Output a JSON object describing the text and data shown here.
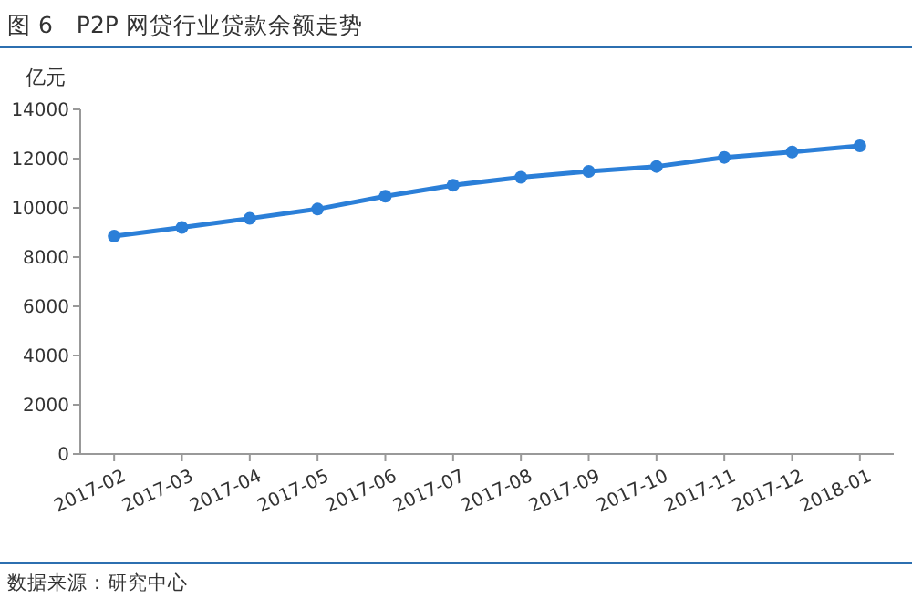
{
  "chart_data": {
    "type": "line",
    "title": "图 6　P2P 网贷行业贷款余额走势",
    "ylabel": "亿元",
    "annotations": [
      "数据来源：研究中心"
    ],
    "categories": [
      "2017-02",
      "2017-03",
      "2017-04",
      "2017-05",
      "2017-06",
      "2017-07",
      "2017-08",
      "2017-09",
      "2017-10",
      "2017-11",
      "2017-12",
      "2018-01"
    ],
    "series": [
      {
        "color": "#2b7fd8",
        "values": [
          8850,
          9200,
          9570,
          9950,
          10470,
          10920,
          11240,
          11480,
          11680,
          12050,
          12270,
          12520
        ]
      }
    ],
    "ylim": [
      0,
      14000
    ],
    "yticks": [
      0,
      2000,
      4000,
      6000,
      8000,
      10000,
      12000,
      14000
    ],
    "grid": false,
    "marker": "circle",
    "line_style": "solid"
  }
}
